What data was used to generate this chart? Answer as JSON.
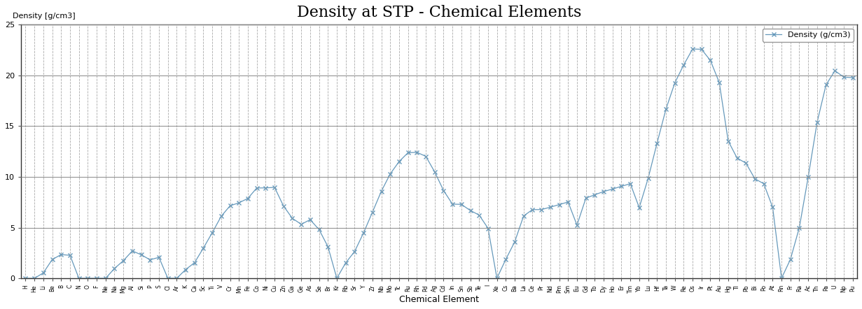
{
  "title": "Density at STP - Chemical Elements",
  "xlabel": "Chemical Element",
  "ylabel": "Density [g/cm3]",
  "legend_label": "Density (g/cm3)",
  "ylim": [
    0,
    25
  ],
  "yticks": [
    0,
    5,
    10,
    15,
    20,
    25
  ],
  "line_color": "#6699bb",
  "marker": "x",
  "bg_color": "#ffffff",
  "grid_y_color": "#888888",
  "grid_x_color": "#aaaaaa",
  "title_fontsize": 16,
  "elements": [
    "H",
    "He",
    "Li",
    "Be",
    "B",
    "C",
    "N",
    "O",
    "F",
    "Ne",
    "Na",
    "Mg",
    "Al",
    "Si",
    "P",
    "S",
    "Cl",
    "Ar",
    "K",
    "Ca",
    "Sc",
    "Ti",
    "V",
    "Cr",
    "Mn",
    "Fe",
    "Co",
    "Ni",
    "Cu",
    "Zn",
    "Ga",
    "Ge",
    "As",
    "Se",
    "Br",
    "Kr",
    "Rb",
    "Sr",
    "Y",
    "Zr",
    "Nb",
    "Mo",
    "Tc",
    "Ru",
    "Rh",
    "Pd",
    "Ag",
    "Cd",
    "In",
    "Sn",
    "Sb",
    "Te",
    "I",
    "Xe",
    "Cs",
    "Ba",
    "La",
    "Ce",
    "Pr",
    "Nd",
    "Pm",
    "Sm",
    "Eu",
    "Gd",
    "Tb",
    "Dy",
    "Ho",
    "Er",
    "Tm",
    "Yb",
    "Lu",
    "Hf",
    "Ta",
    "W",
    "Re",
    "Os",
    "Ir",
    "Pt",
    "Au",
    "Hg",
    "Tl",
    "Pb",
    "Bi",
    "Po",
    "At",
    "Rn",
    "Fr",
    "Ra",
    "Ac",
    "Th",
    "Pa",
    "U",
    "Np",
    "Pu"
  ],
  "densities": [
    9e-05,
    0.000179,
    0.534,
    1.85,
    2.34,
    2.267,
    0.00125,
    0.00143,
    0.0017,
    0.0009,
    0.971,
    1.738,
    2.698,
    2.329,
    1.823,
    2.067,
    0.00321,
    0.00178,
    0.862,
    1.54,
    2.985,
    4.507,
    6.11,
    7.15,
    7.44,
    7.874,
    8.9,
    8.908,
    8.96,
    7.133,
    5.907,
    5.323,
    5.776,
    4.809,
    3.12,
    0.00375,
    1.532,
    2.64,
    4.469,
    6.506,
    8.57,
    10.28,
    11.5,
    12.37,
    12.41,
    12.02,
    10.49,
    8.65,
    7.31,
    7.287,
    6.685,
    6.232,
    4.93,
    0.00589,
    1.873,
    3.594,
    6.145,
    6.77,
    6.773,
    7.007,
    7.26,
    7.52,
    5.243,
    7.895,
    8.229,
    8.55,
    8.795,
    9.066,
    9.32,
    6.965,
    9.84,
    13.31,
    16.654,
    19.25,
    21.02,
    22.587,
    22.562,
    21.46,
    19.282,
    13.534,
    11.85,
    11.342,
    9.807,
    9.32,
    7.0,
    0.00973,
    1.87,
    5.0,
    10.0,
    15.37,
    19.05,
    20.45,
    19.816,
    19.77
  ]
}
